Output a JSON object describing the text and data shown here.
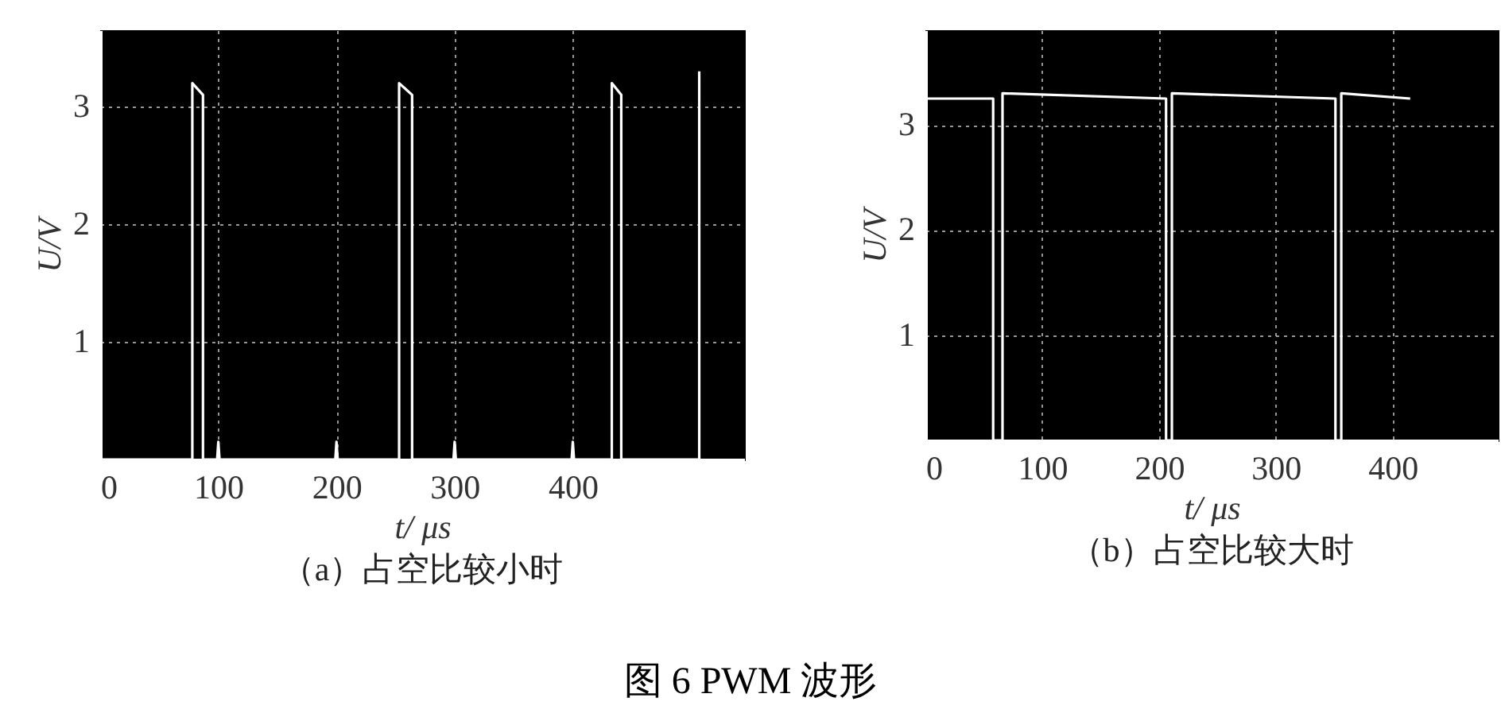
{
  "chart_data": [
    {
      "type": "line",
      "title": "（a）占空比较小时",
      "xlabel": "t/ μs",
      "ylabel": "U/V",
      "xlim": [
        0,
        545
      ],
      "ylim": [
        0,
        3.65
      ],
      "xticks": [
        0,
        100,
        200,
        300,
        400
      ],
      "yticks": [
        1,
        2,
        3
      ],
      "grid": true,
      "marker": "none",
      "line_style": "solid",
      "legend": false,
      "series": [
        {
          "color": "#ffffff",
          "x": [
            0,
            78,
            78,
            87,
            87,
            99,
            100,
            101,
            199,
            200,
            201,
            253,
            253,
            264,
            264,
            299,
            300,
            301,
            399,
            400,
            401,
            433,
            433,
            441,
            441,
            507,
            507
          ],
          "values": [
            0,
            0,
            3.2,
            3.1,
            0,
            0,
            0.15,
            0,
            0,
            0.15,
            0,
            0,
            3.2,
            3.1,
            0,
            0,
            0.15,
            0,
            0,
            0.15,
            0,
            0,
            3.2,
            3.1,
            0,
            0,
            3.3
          ]
        }
      ]
    },
    {
      "type": "line",
      "title": "（b）占空比较大时",
      "xlabel": "t/ μs",
      "ylabel": "U/V",
      "xlim": [
        0,
        490
      ],
      "ylim": [
        0,
        3.9
      ],
      "xticks": [
        0,
        100,
        200,
        300,
        400
      ],
      "yticks": [
        1,
        2,
        3
      ],
      "grid": true,
      "marker": "none",
      "line_style": "solid",
      "legend": false,
      "annotations": [
        "图 6 PWM 波形"
      ],
      "series": [
        {
          "color": "#ffffff",
          "x": [
            0,
            58,
            58,
            66,
            66,
            206,
            206,
            211,
            211,
            351,
            351,
            356,
            356,
            415
          ],
          "values": [
            3.25,
            3.25,
            0,
            0,
            3.3,
            3.25,
            0,
            0,
            3.3,
            3.25,
            0,
            0,
            3.3,
            3.25
          ]
        }
      ]
    }
  ]
}
